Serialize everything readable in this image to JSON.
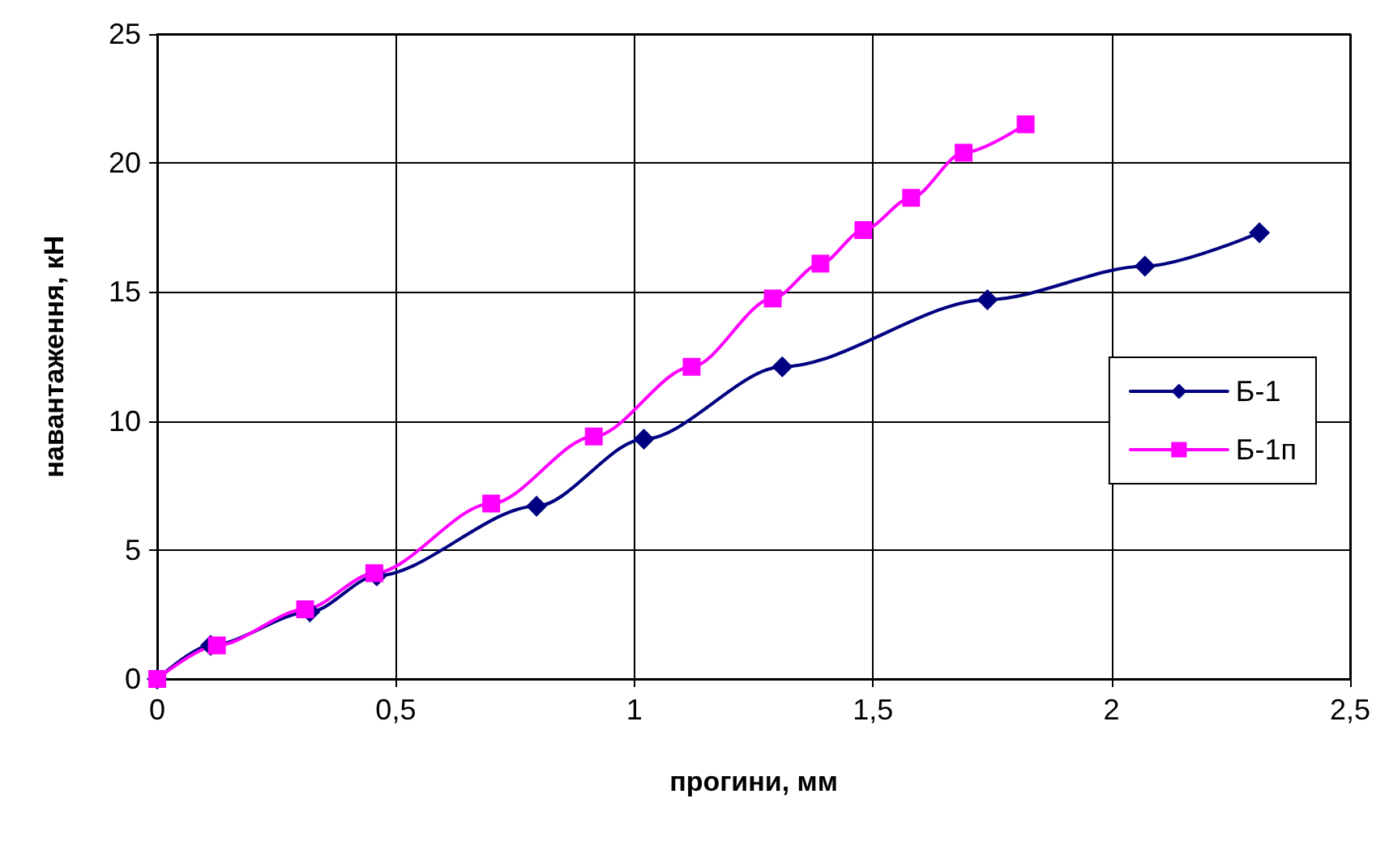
{
  "chart_data": {
    "type": "line",
    "xlabel": "прогини, мм",
    "ylabel": "навантаження, кН",
    "xlim": [
      0,
      2.5
    ],
    "xticks": [
      0,
      {
        "value": 0.5,
        "label": "0,5"
      },
      1,
      {
        "value": 1.5,
        "label": "1,5"
      },
      2,
      {
        "value": 2.5,
        "label": "2,5"
      }
    ],
    "ylim": [
      0,
      25
    ],
    "yticks": [
      0,
      5,
      10,
      15,
      20,
      25
    ],
    "grid": true,
    "legend": "right",
    "line_style": "solid",
    "series": [
      {
        "name": "Б-1",
        "color": "#000080",
        "marker": "diamond",
        "x": [
          0,
          0.112,
          0.32,
          0.46,
          0.795,
          1.02,
          1.31,
          1.74,
          2.07,
          2.31
        ],
        "values": [
          0,
          1.3,
          2.6,
          4.0,
          6.7,
          9.3,
          12.1,
          14.7,
          16.0,
          17.3
        ]
      },
      {
        "name": "Б-1п",
        "color": "#ff00ff",
        "marker": "square",
        "x": [
          0,
          0.125,
          0.31,
          0.455,
          0.7,
          0.915,
          1.12,
          1.29,
          1.39,
          1.48,
          1.58,
          1.69,
          1.82
        ],
        "values": [
          0,
          1.3,
          2.7,
          4.1,
          6.8,
          9.4,
          12.1,
          14.75,
          16.1,
          17.4,
          18.65,
          20.4,
          21.5
        ]
      }
    ]
  }
}
